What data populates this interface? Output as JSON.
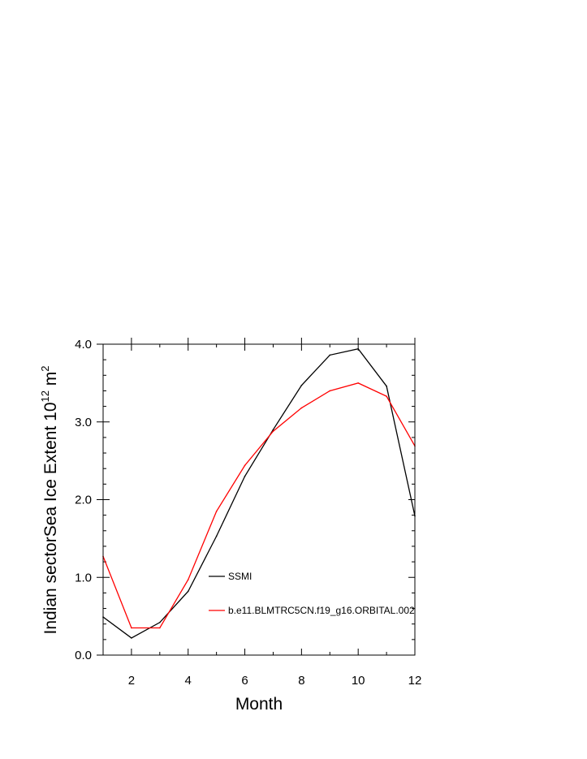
{
  "chart_data": {
    "type": "line",
    "xlabel": "Month",
    "ylabel": "Indian sectorSea Ice Extent 10",
    "ylabel_sup": "12",
    "ylabel_unit": " m",
    "ylabel_unit_sup": "2",
    "xlim": [
      1,
      12
    ],
    "ylim": [
      0.0,
      4.0
    ],
    "x_ticks": [
      2,
      4,
      6,
      8,
      10,
      12
    ],
    "y_ticks": [
      "0.0",
      "1.0",
      "2.0",
      "3.0",
      "4.0"
    ],
    "x": [
      1,
      2,
      3,
      4,
      5,
      6,
      7,
      8,
      9,
      10,
      11,
      12
    ],
    "series": [
      {
        "name": "SSMI",
        "color": "#000000",
        "values": [
          0.49,
          0.22,
          0.42,
          0.82,
          1.53,
          2.3,
          2.9,
          3.47,
          3.86,
          3.94,
          3.46,
          1.79
        ]
      },
      {
        "name": "b.e11.BLMTRC5CN.f19_g16.ORBITAL.002",
        "color": "#ff0000",
        "values": [
          1.27,
          0.35,
          0.35,
          0.97,
          1.85,
          2.44,
          2.88,
          3.18,
          3.4,
          3.5,
          3.33,
          2.69
        ]
      }
    ],
    "grid": false,
    "legend_position": "inside-lower-center"
  }
}
